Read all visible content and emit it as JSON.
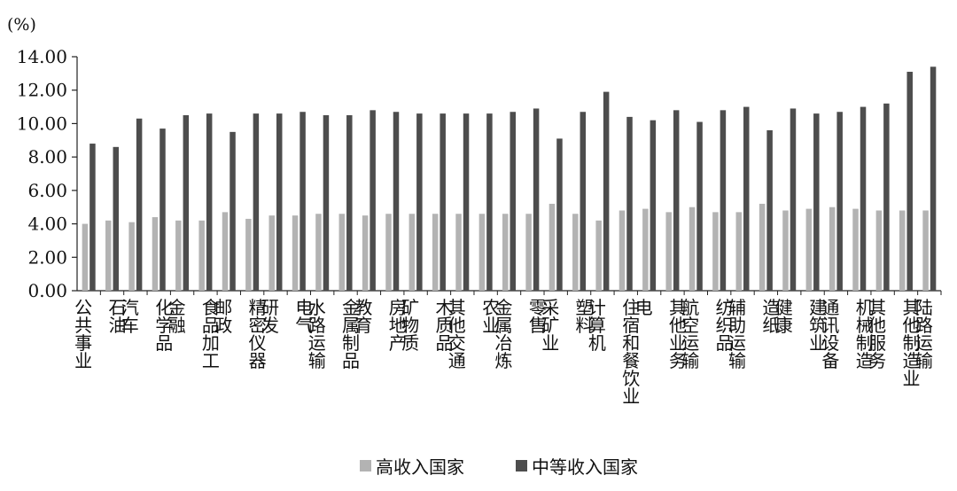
{
  "chart_data": {
    "type": "bar",
    "unit_label": "(%)",
    "ylim": [
      0,
      14
    ],
    "yticks": [
      "0.00",
      "2.00",
      "4.00",
      "6.00",
      "8.00",
      "10.00",
      "12.00",
      "14.00"
    ],
    "grid": false,
    "legend_position": "bottom",
    "categories": [
      "公共事业",
      "石油",
      "汽车",
      "化学品",
      "金融",
      "食品加工",
      "邮政",
      "精密仪器",
      "研发",
      "电气",
      "水路运输",
      "金属制品",
      "教育",
      "房地产",
      "矿物质",
      "木质品",
      "其他交通",
      "农业",
      "金属冶炼",
      "零售",
      "采矿业",
      "塑料",
      "计算机",
      "住宿和餐饮业",
      "电",
      "其他业务",
      "航空运输",
      "纺织品",
      "辅助运输",
      "造纸",
      "健康",
      "建筑业",
      "通讯设备",
      "机械制造",
      "其他服务",
      "其他制造业",
      "陆路运输"
    ],
    "series": [
      {
        "name": "高收入国家",
        "color": "#b3b3b3",
        "values": [
          4.0,
          4.2,
          4.1,
          4.4,
          4.2,
          4.2,
          4.7,
          4.3,
          4.5,
          4.5,
          4.6,
          4.6,
          4.5,
          4.6,
          4.6,
          4.6,
          4.6,
          4.6,
          4.6,
          4.6,
          5.2,
          4.6,
          4.2,
          4.8,
          4.9,
          4.7,
          5.0,
          4.7,
          4.7,
          5.2,
          4.8,
          4.9,
          5.0,
          4.9,
          4.8,
          4.8,
          4.8
        ]
      },
      {
        "name": "中等收入国家",
        "color": "#4d4d4d",
        "values": [
          8.8,
          8.6,
          10.3,
          9.7,
          10.5,
          10.6,
          9.5,
          10.6,
          10.6,
          10.7,
          10.5,
          10.5,
          10.8,
          10.7,
          10.6,
          10.6,
          10.6,
          10.6,
          10.7,
          10.9,
          9.1,
          10.7,
          11.9,
          10.4,
          10.2,
          10.8,
          10.1,
          10.8,
          11.0,
          9.6,
          10.9,
          10.6,
          10.7,
          11.0,
          11.2,
          13.1,
          13.4
        ]
      }
    ]
  }
}
